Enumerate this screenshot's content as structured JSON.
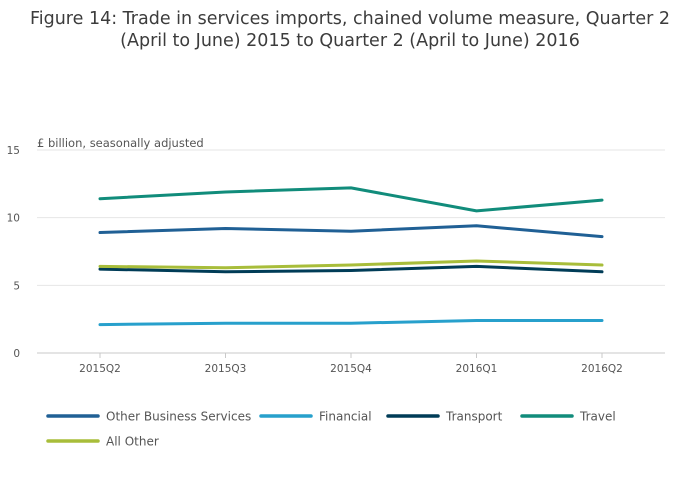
{
  "chart_data": {
    "type": "line",
    "title_line1": "Figure 14: Trade in services imports, chained volume measure, Quarter 2",
    "title_line2": "(April to June) 2015 to Quarter 2 (April to June) 2016",
    "ylabel": "£ billion, seasonally adjusted",
    "xlabel": "",
    "categories": [
      "2015Q2",
      "2015Q3",
      "2015Q4",
      "2016Q1",
      "2016Q2"
    ],
    "ylim": [
      0,
      15
    ],
    "yticks": [
      0,
      5,
      10,
      15
    ],
    "grid": true,
    "legend_position": "bottom",
    "series": [
      {
        "name": "Other Business Services",
        "color": "#206095",
        "values": [
          8.9,
          9.2,
          9.0,
          9.4,
          8.6
        ]
      },
      {
        "name": "Financial",
        "color": "#27a0cc",
        "values": [
          2.1,
          2.2,
          2.2,
          2.4,
          2.4
        ]
      },
      {
        "name": "Transport",
        "color": "#003c57",
        "values": [
          6.2,
          6.0,
          6.1,
          6.4,
          6.0
        ]
      },
      {
        "name": "Travel",
        "color": "#118c7b",
        "values": [
          11.4,
          11.9,
          12.2,
          10.5,
          11.3
        ]
      },
      {
        "name": "All Other",
        "color": "#a8bd3a",
        "values": [
          6.4,
          6.3,
          6.5,
          6.8,
          6.5
        ]
      }
    ]
  }
}
